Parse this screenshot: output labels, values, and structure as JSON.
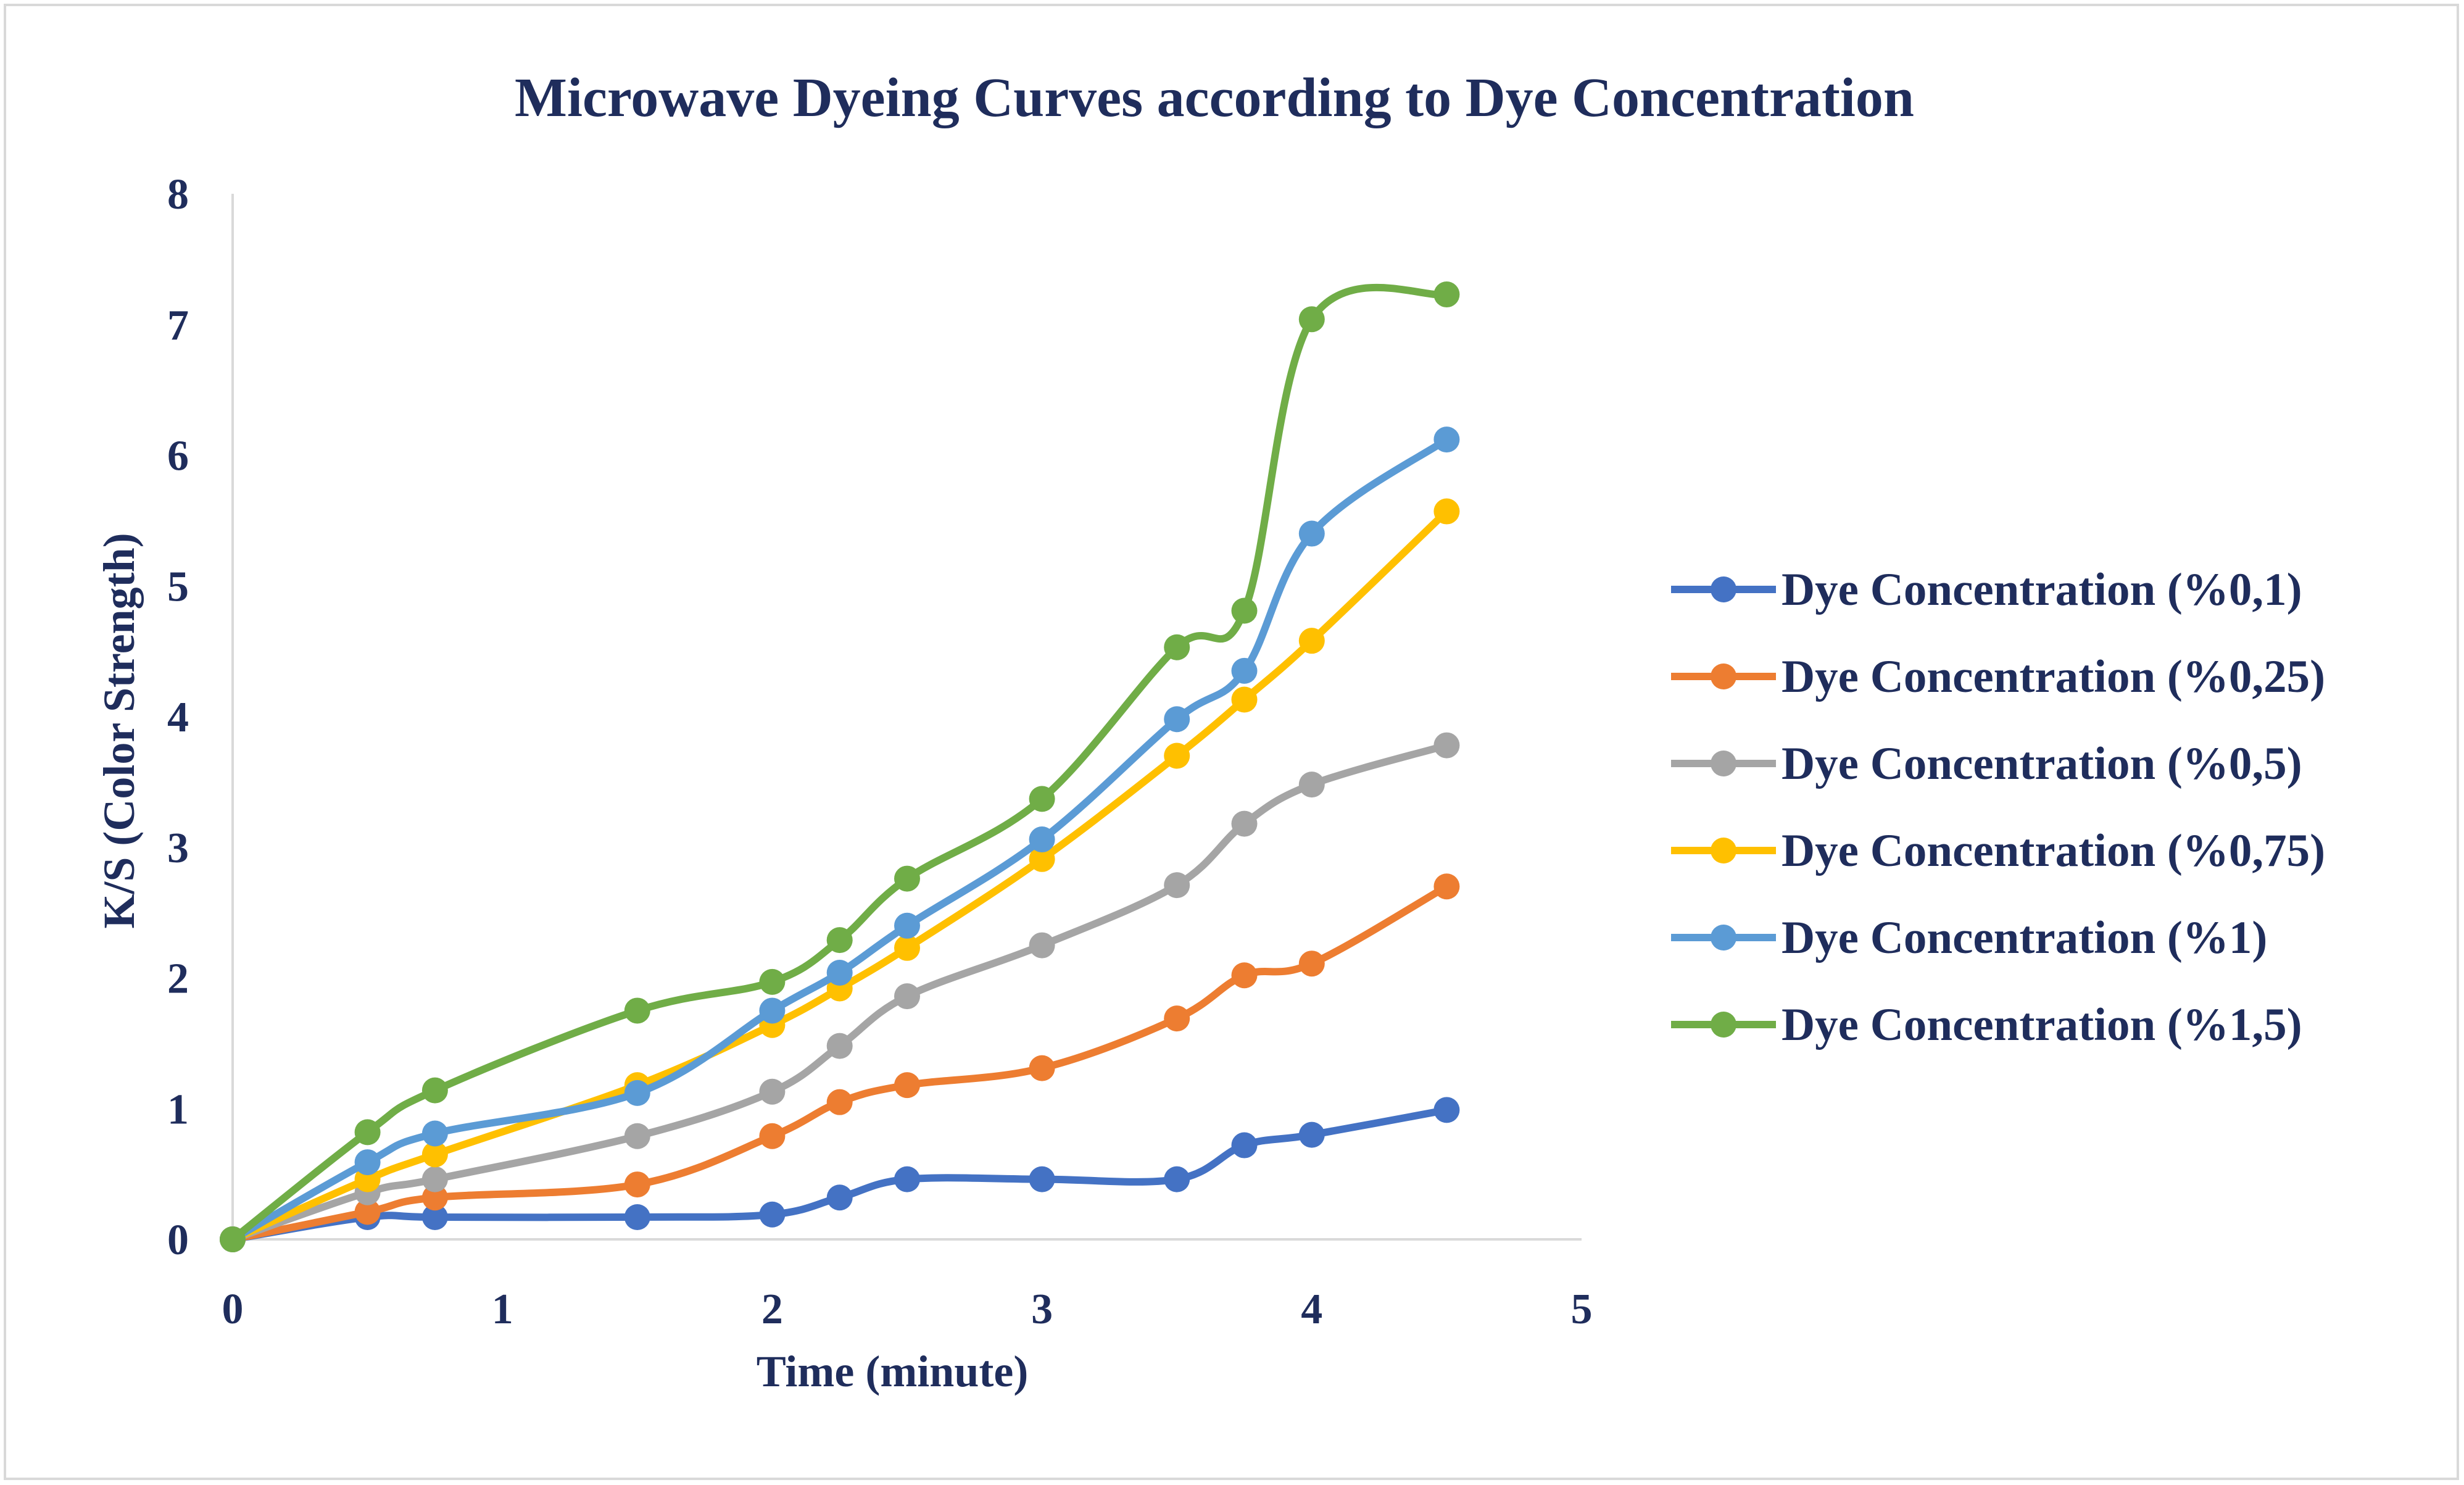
{
  "chart_data": {
    "type": "line",
    "title": "Microwave Dyeing Curves according to Dye Concentration",
    "xlabel": "Time (minute)",
    "ylabel": "K/S (Color Strength)",
    "xlim": [
      0,
      5
    ],
    "ylim": [
      0,
      8
    ],
    "x_ticks": [
      "0",
      "1",
      "2",
      "3",
      "4",
      "5"
    ],
    "y_ticks": [
      "0",
      "1",
      "2",
      "3",
      "4",
      "5",
      "6",
      "7",
      "8"
    ],
    "grid": false,
    "legend_position": "right",
    "x": [
      0,
      0.5,
      0.75,
      1.5,
      2,
      2.25,
      2.5,
      3,
      3.5,
      3.75,
      4,
      4.5
    ],
    "series": [
      {
        "name": "Dye Concentration (%0,1)",
        "color": "#4472C4",
        "values": [
          0,
          0.17,
          0.17,
          0.17,
          0.19,
          0.32,
          0.46,
          0.46,
          0.46,
          0.72,
          0.8,
          0.99
        ]
      },
      {
        "name": "Dye Concentration (%0,25)",
        "color": "#ED7D31",
        "values": [
          0,
          0.21,
          0.32,
          0.42,
          0.79,
          1.05,
          1.18,
          1.31,
          1.69,
          2.02,
          2.11,
          2.7
        ]
      },
      {
        "name": "Dye Concentration (%0,5)",
        "color": "#A5A5A5",
        "values": [
          0,
          0.36,
          0.46,
          0.79,
          1.13,
          1.48,
          1.86,
          2.25,
          2.71,
          3.18,
          3.48,
          3.78
        ]
      },
      {
        "name": "Dye Concentration (%0,75)",
        "color": "#FFC000",
        "values": [
          0,
          0.46,
          0.65,
          1.18,
          1.64,
          1.92,
          2.23,
          2.91,
          3.7,
          4.13,
          4.58,
          5.57
        ]
      },
      {
        "name": "Dye Concentration (%1)",
        "color": "#5B9BD5",
        "values": [
          0,
          0.59,
          0.81,
          1.12,
          1.75,
          2.04,
          2.4,
          3.06,
          3.98,
          4.35,
          5.4,
          6.12
        ]
      },
      {
        "name": "Dye Concentration (%1,5)",
        "color": "#70AD47",
        "values": [
          0,
          0.82,
          1.14,
          1.75,
          1.97,
          2.29,
          2.76,
          3.37,
          4.53,
          4.81,
          7.04,
          7.23
        ]
      }
    ]
  }
}
